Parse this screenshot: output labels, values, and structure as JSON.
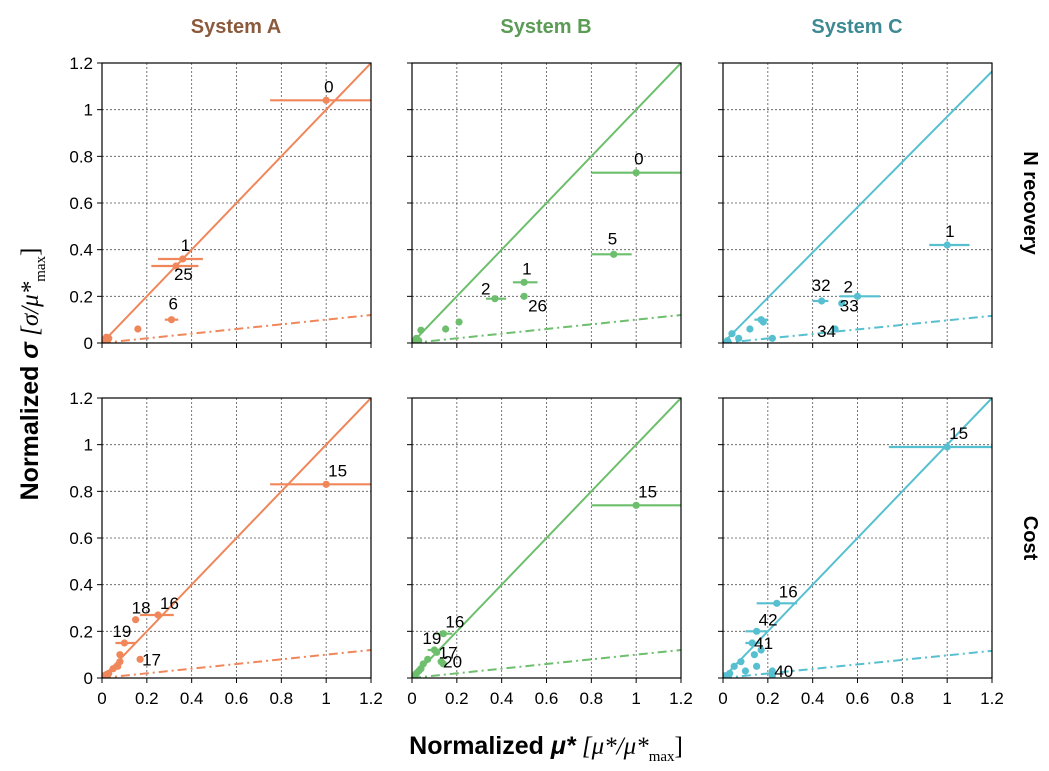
{
  "figure": {
    "columns": [
      {
        "title": "System A",
        "title_color": "#8b5a3c",
        "color": "#f0875a"
      },
      {
        "title": "System B",
        "title_color": "#5b9b55",
        "color": "#6dbf6d"
      },
      {
        "title": "System C",
        "title_color": "#3e8a94",
        "color": "#56c0d0"
      }
    ],
    "rows": [
      {
        "title": "N recovery"
      },
      {
        "title": "Cost"
      }
    ],
    "x_title_prefix": "Normalized ",
    "x_title_symbol": "μ*",
    "x_title_bracket": " [μ*/μ*",
    "x_title_sub": "max",
    "x_title_close": "]",
    "y_title_prefix": "Normalized ",
    "y_title_symbol": "σ",
    "y_title_bracket": " [σ/μ*",
    "y_title_sub": "max",
    "y_title_close": "]"
  },
  "chart_data": [
    {
      "type": "scatter",
      "system": "System A",
      "metric": "N recovery",
      "xlim": [
        0,
        1.2
      ],
      "ylim": [
        0,
        1.2
      ],
      "grid": true,
      "xticks": [
        "0",
        "0.2",
        "0.4",
        "0.6",
        "0.8",
        "1",
        "1.2"
      ],
      "yticks": [
        "0",
        "0.2",
        "0.4",
        "0.6",
        "0.8",
        "1",
        "1.2"
      ],
      "reference_lines": [
        {
          "style": "solid",
          "slope": 1.0
        },
        {
          "style": "dashdot",
          "slope": 0.1
        }
      ],
      "points": [
        {
          "label": "0",
          "x": 1.0,
          "y": 1.04,
          "xerr": [
            0.75,
            1.2
          ]
        },
        {
          "label": "1",
          "x": 0.36,
          "y": 0.36,
          "xerr": [
            0.25,
            0.45
          ]
        },
        {
          "label": "25",
          "x": 0.33,
          "y": 0.33,
          "xerr": [
            0.22,
            0.43
          ]
        },
        {
          "label": "6",
          "x": 0.31,
          "y": 0.1,
          "xerr": [
            0.28,
            0.34
          ]
        },
        {
          "label": "",
          "x": 0.16,
          "y": 0.06
        },
        {
          "label": "",
          "x": 0.02,
          "y": 0.025
        },
        {
          "label": "",
          "x": 0.03,
          "y": 0.02
        },
        {
          "label": "",
          "x": 0.01,
          "y": 0.015
        }
      ]
    },
    {
      "type": "scatter",
      "system": "System B",
      "metric": "N recovery",
      "xlim": [
        0,
        1.2
      ],
      "ylim": [
        0,
        1.2
      ],
      "grid": true,
      "xticks": [
        "0",
        "0.2",
        "0.4",
        "0.6",
        "0.8",
        "1",
        "1.2"
      ],
      "yticks": [
        "0",
        "0.2",
        "0.4",
        "0.6",
        "0.8",
        "1",
        "1.2"
      ],
      "reference_lines": [
        {
          "style": "solid",
          "slope": 1.0
        },
        {
          "style": "dashdot",
          "slope": 0.1
        }
      ],
      "points": [
        {
          "label": "0",
          "x": 1.0,
          "y": 0.73,
          "xerr": [
            0.8,
            1.2
          ]
        },
        {
          "label": "5",
          "x": 0.9,
          "y": 0.38,
          "xerr": [
            0.8,
            0.98
          ]
        },
        {
          "label": "1",
          "x": 0.5,
          "y": 0.26,
          "xerr": [
            0.45,
            0.56
          ]
        },
        {
          "label": "2",
          "x": 0.37,
          "y": 0.19,
          "xerr": [
            0.33,
            0.42
          ]
        },
        {
          "label": "26",
          "x": 0.5,
          "y": 0.2
        },
        {
          "label": "",
          "x": 0.21,
          "y": 0.09
        },
        {
          "label": "",
          "x": 0.15,
          "y": 0.06
        },
        {
          "label": "",
          "x": 0.04,
          "y": 0.055
        },
        {
          "label": "",
          "x": 0.02,
          "y": 0.02
        },
        {
          "label": "",
          "x": 0.03,
          "y": 0.01
        },
        {
          "label": "",
          "x": 0.01,
          "y": 0.01
        }
      ]
    },
    {
      "type": "scatter",
      "system": "System C",
      "metric": "N recovery",
      "xlim": [
        0,
        1.2
      ],
      "ylim": [
        0,
        1.2
      ],
      "grid": true,
      "xticks": [
        "0",
        "0.2",
        "0.4",
        "0.6",
        "0.8",
        "1",
        "1.2"
      ],
      "yticks": [
        "0",
        "0.2",
        "0.4",
        "0.6",
        "0.8",
        "1",
        "1.2"
      ],
      "reference_lines": [
        {
          "style": "solid",
          "slope": 0.97
        },
        {
          "style": "dashdot",
          "slope": 0.097
        }
      ],
      "points": [
        {
          "label": "1",
          "x": 1.0,
          "y": 0.42,
          "xerr": [
            0.92,
            1.1
          ]
        },
        {
          "label": "32",
          "x": 0.44,
          "y": 0.18,
          "xerr": [
            0.4,
            0.47
          ]
        },
        {
          "label": "2",
          "x": 0.6,
          "y": 0.2,
          "xerr": [
            0.52,
            0.7
          ]
        },
        {
          "label": "33",
          "x": 0.53,
          "y": 0.17
        },
        {
          "label": "34",
          "x": 0.5,
          "y": 0.06
        },
        {
          "label": "",
          "x": 0.17,
          "y": 0.1,
          "xerr": [
            0.14,
            0.2
          ]
        },
        {
          "label": "",
          "x": 0.18,
          "y": 0.09
        },
        {
          "label": "",
          "x": 0.12,
          "y": 0.06
        },
        {
          "label": "",
          "x": 0.04,
          "y": 0.04
        },
        {
          "label": "",
          "x": 0.07,
          "y": 0.02
        },
        {
          "label": "",
          "x": 0.22,
          "y": 0.02
        },
        {
          "label": "",
          "x": 0.02,
          "y": 0.01
        }
      ]
    },
    {
      "type": "scatter",
      "system": "System A",
      "metric": "Cost",
      "xlim": [
        0,
        1.2
      ],
      "ylim": [
        0,
        1.2
      ],
      "grid": true,
      "xticks": [
        "0",
        "0.2",
        "0.4",
        "0.6",
        "0.8",
        "1",
        "1.2"
      ],
      "yticks": [
        "0",
        "0.2",
        "0.4",
        "0.6",
        "0.8",
        "1",
        "1.2"
      ],
      "reference_lines": [
        {
          "style": "solid",
          "slope": 1.0
        },
        {
          "style": "dashdot",
          "slope": 0.1
        }
      ],
      "points": [
        {
          "label": "15",
          "x": 1.0,
          "y": 0.83,
          "xerr": [
            0.75,
            1.2
          ]
        },
        {
          "label": "16",
          "x": 0.25,
          "y": 0.27,
          "xerr": [
            0.17,
            0.32
          ]
        },
        {
          "label": "18",
          "x": 0.15,
          "y": 0.25
        },
        {
          "label": "19",
          "x": 0.1,
          "y": 0.15,
          "xerr": [
            0.06,
            0.15
          ]
        },
        {
          "label": "17",
          "x": 0.17,
          "y": 0.08
        },
        {
          "label": "",
          "x": 0.08,
          "y": 0.1
        },
        {
          "label": "",
          "x": 0.08,
          "y": 0.07
        },
        {
          "label": "",
          "x": 0.07,
          "y": 0.05
        },
        {
          "label": "",
          "x": 0.05,
          "y": 0.04
        },
        {
          "label": "",
          "x": 0.03,
          "y": 0.02
        },
        {
          "label": "",
          "x": 0.02,
          "y": 0.015
        },
        {
          "label": "",
          "x": 0.01,
          "y": 0.01
        }
      ]
    },
    {
      "type": "scatter",
      "system": "System B",
      "metric": "Cost",
      "xlim": [
        0,
        1.2
      ],
      "ylim": [
        0,
        1.2
      ],
      "grid": true,
      "xticks": [
        "0",
        "0.2",
        "0.4",
        "0.6",
        "0.8",
        "1",
        "1.2"
      ],
      "yticks": [
        "0",
        "0.2",
        "0.4",
        "0.6",
        "0.8",
        "1",
        "1.2"
      ],
      "reference_lines": [
        {
          "style": "solid",
          "slope": 1.0
        },
        {
          "style": "dashdot",
          "slope": 0.1
        }
      ],
      "points": [
        {
          "label": "15",
          "x": 1.0,
          "y": 0.74,
          "xerr": [
            0.8,
            1.2
          ]
        },
        {
          "label": "16",
          "x": 0.14,
          "y": 0.19,
          "xerr": [
            0.1,
            0.18
          ]
        },
        {
          "label": "19",
          "x": 0.1,
          "y": 0.12,
          "xerr": [
            0.07,
            0.13
          ]
        },
        {
          "label": "17",
          "x": 0.11,
          "y": 0.11
        },
        {
          "label": "20",
          "x": 0.13,
          "y": 0.07
        },
        {
          "label": "",
          "x": 0.14,
          "y": 0.06
        },
        {
          "label": "",
          "x": 0.07,
          "y": 0.08
        },
        {
          "label": "",
          "x": 0.05,
          "y": 0.06
        },
        {
          "label": "",
          "x": 0.04,
          "y": 0.04
        },
        {
          "label": "",
          "x": 0.03,
          "y": 0.03
        },
        {
          "label": "",
          "x": 0.02,
          "y": 0.02
        },
        {
          "label": "",
          "x": 0.01,
          "y": 0.01
        }
      ]
    },
    {
      "type": "scatter",
      "system": "System C",
      "metric": "Cost",
      "xlim": [
        0,
        1.2
      ],
      "ylim": [
        0,
        1.2
      ],
      "grid": true,
      "xticks": [
        "0",
        "0.2",
        "0.4",
        "0.6",
        "0.8",
        "1",
        "1.2"
      ],
      "yticks": [
        "0",
        "0.2",
        "0.4",
        "0.6",
        "0.8",
        "1",
        "1.2"
      ],
      "reference_lines": [
        {
          "style": "solid",
          "slope": 1.0
        },
        {
          "style": "dashdot",
          "slope": 0.097
        }
      ],
      "points": [
        {
          "label": "15",
          "x": 1.0,
          "y": 0.99,
          "xerr": [
            0.74,
            1.2
          ]
        },
        {
          "label": "16",
          "x": 0.24,
          "y": 0.32,
          "xerr": [
            0.15,
            0.33
          ]
        },
        {
          "label": "42",
          "x": 0.15,
          "y": 0.2,
          "xerr": [
            0.1,
            0.2
          ]
        },
        {
          "label": "41",
          "x": 0.13,
          "y": 0.15,
          "xerr": [
            0.1,
            0.17
          ]
        },
        {
          "label": "40",
          "x": 0.22,
          "y": 0.03
        },
        {
          "label": "",
          "x": 0.17,
          "y": 0.12
        },
        {
          "label": "",
          "x": 0.14,
          "y": 0.1
        },
        {
          "label": "",
          "x": 0.08,
          "y": 0.07
        },
        {
          "label": "",
          "x": 0.05,
          "y": 0.05
        },
        {
          "label": "",
          "x": 0.15,
          "y": 0.05
        },
        {
          "label": "",
          "x": 0.1,
          "y": 0.03
        },
        {
          "label": "",
          "x": 0.03,
          "y": 0.02
        },
        {
          "label": "",
          "x": 0.22,
          "y": 0.01
        },
        {
          "label": "",
          "x": 0.01,
          "y": 0.01
        }
      ]
    }
  ]
}
